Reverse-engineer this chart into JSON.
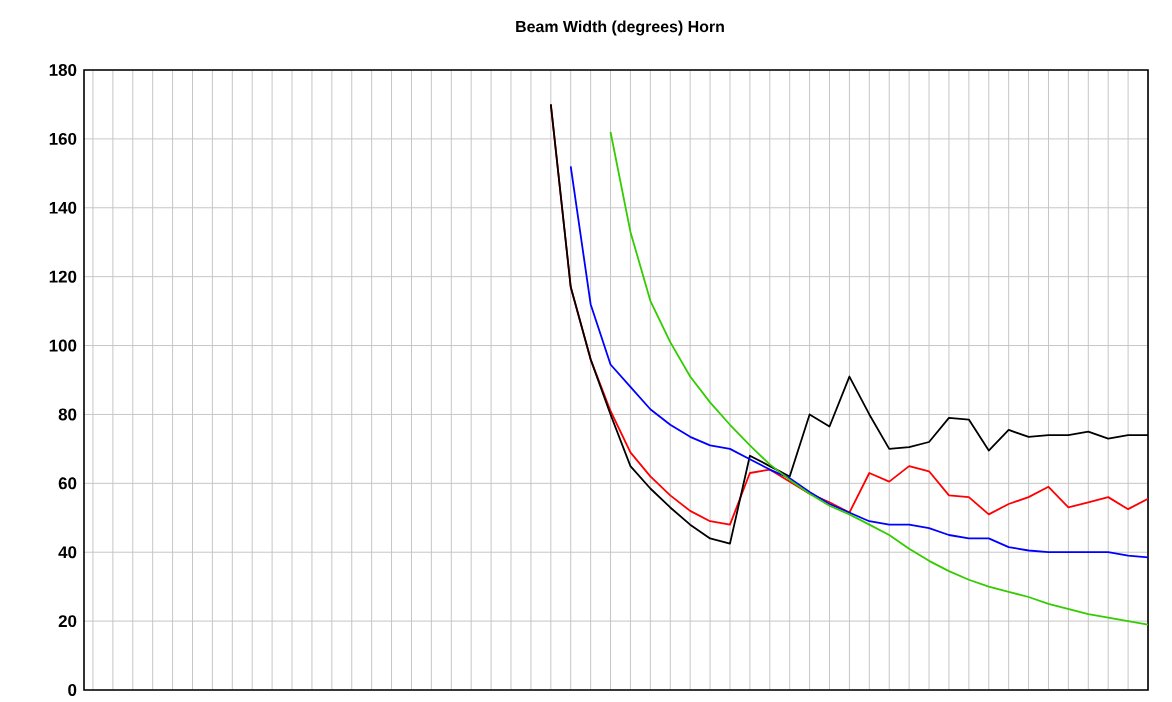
{
  "chart_data": {
    "type": "line",
    "title": "Beam Width (degrees)    Horn",
    "categories": [
      null,
      null,
      null,
      null,
      null,
      null,
      null,
      null,
      null,
      null,
      null,
      null,
      null,
      null,
      null,
      null,
      null,
      null,
      null,
      null,
      null,
      null,
      null,
      null,
      null,
      null,
      null,
      null,
      null,
      null,
      null,
      null,
      null,
      null,
      null,
      null,
      null,
      null,
      null,
      null,
      null,
      null,
      null,
      null,
      null,
      null,
      null,
      null,
      null,
      null,
      null,
      null,
      null,
      null
    ],
    "series": [
      {
        "color": "#ff0000",
        "values": [
          null,
          null,
          null,
          null,
          null,
          null,
          null,
          null,
          null,
          null,
          null,
          null,
          null,
          null,
          null,
          null,
          null,
          null,
          null,
          null,
          null,
          null,
          null,
          170,
          117,
          96,
          81,
          69,
          62,
          56.5,
          52,
          49,
          48,
          63,
          64,
          60.5,
          57,
          54.5,
          51.5,
          63,
          60.5,
          65,
          63.5,
          56.5,
          56,
          51,
          54,
          56,
          59,
          53,
          54.5,
          56,
          52.5,
          55.5
        ]
      },
      {
        "color": "#000000",
        "values": [
          null,
          null,
          null,
          null,
          null,
          null,
          null,
          null,
          null,
          null,
          null,
          null,
          null,
          null,
          null,
          null,
          null,
          null,
          null,
          null,
          null,
          null,
          null,
          170,
          117,
          96,
          80,
          65,
          58.5,
          53,
          48,
          44,
          42.5,
          68,
          65,
          62,
          80,
          76.5,
          91,
          80,
          70,
          70.5,
          72,
          79,
          78.5,
          69.5,
          75.5,
          73.5,
          74,
          74,
          75,
          73,
          74,
          74
        ]
      },
      {
        "color": "#0000ff",
        "values": [
          null,
          null,
          null,
          null,
          null,
          null,
          null,
          null,
          null,
          null,
          null,
          null,
          null,
          null,
          null,
          null,
          null,
          null,
          null,
          null,
          null,
          null,
          null,
          null,
          152,
          112,
          94.5,
          88,
          81.5,
          77,
          73.5,
          71,
          70,
          67,
          64,
          61.5,
          57.5,
          54,
          51.5,
          49,
          48,
          48,
          47,
          45,
          44,
          44,
          41.5,
          40.5,
          40,
          40,
          40,
          40,
          39,
          38.5
        ]
      },
      {
        "color": "#33cc00",
        "values": [
          null,
          null,
          null,
          null,
          null,
          null,
          null,
          null,
          null,
          null,
          null,
          null,
          null,
          null,
          null,
          null,
          null,
          null,
          null,
          null,
          null,
          null,
          null,
          null,
          null,
          null,
          162,
          133,
          113,
          101,
          91,
          83.5,
          77,
          71,
          65.5,
          61,
          57,
          53.5,
          51,
          48,
          45,
          41,
          37.5,
          34.5,
          32,
          30,
          28.5,
          27,
          25,
          23.5,
          22,
          21,
          20,
          19
        ]
      }
    ],
    "ylim": [
      0,
      180
    ],
    "yticks": [
      0,
      20,
      40,
      60,
      80,
      100,
      120,
      140,
      160,
      180
    ],
    "grid": true,
    "tick_labels": "y",
    "line_style": "solid",
    "marker": "none"
  }
}
